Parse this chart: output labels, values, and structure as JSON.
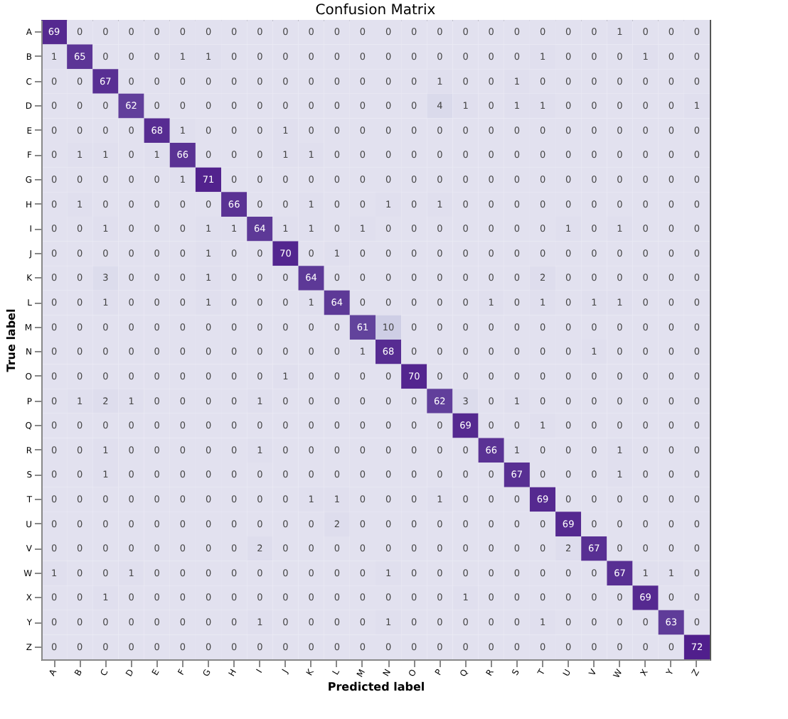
{
  "chart_data": {
    "type": "heatmap",
    "title": "Confusion Matrix",
    "xlabel": "Predicted label",
    "ylabel": "True label",
    "grid": false,
    "data_labels": true,
    "categories": [
      "A",
      "B",
      "C",
      "D",
      "E",
      "F",
      "G",
      "H",
      "I",
      "J",
      "K",
      "L",
      "M",
      "N",
      "O",
      "P",
      "Q",
      "R",
      "S",
      "T",
      "U",
      "V",
      "W",
      "X",
      "Y",
      "Z"
    ],
    "y_categories": [
      "A",
      "B",
      "C",
      "D",
      "E",
      "F",
      "G",
      "H",
      "I",
      "J",
      "K",
      "L",
      "M",
      "N",
      "O",
      "P",
      "Q",
      "R",
      "S",
      "T",
      "U",
      "V",
      "W",
      "X",
      "Y",
      "Z"
    ],
    "cells": [
      [
        69,
        0,
        0,
        0,
        0,
        0,
        0,
        0,
        0,
        0,
        0,
        0,
        0,
        0,
        0,
        0,
        0,
        0,
        0,
        0,
        0,
        0,
        1,
        0,
        0,
        0
      ],
      [
        1,
        65,
        0,
        0,
        0,
        1,
        1,
        0,
        0,
        0,
        0,
        0,
        0,
        0,
        0,
        0,
        0,
        0,
        0,
        1,
        0,
        0,
        0,
        1,
        0,
        0
      ],
      [
        0,
        0,
        67,
        0,
        0,
        0,
        0,
        0,
        0,
        0,
        0,
        0,
        0,
        0,
        0,
        1,
        0,
        0,
        1,
        0,
        0,
        0,
        0,
        0,
        0,
        0
      ],
      [
        0,
        0,
        0,
        62,
        0,
        0,
        0,
        0,
        0,
        0,
        0,
        0,
        0,
        0,
        0,
        4,
        1,
        0,
        1,
        1,
        0,
        0,
        0,
        0,
        0,
        1
      ],
      [
        0,
        0,
        0,
        0,
        68,
        1,
        0,
        0,
        0,
        1,
        0,
        0,
        0,
        0,
        0,
        0,
        0,
        0,
        0,
        0,
        0,
        0,
        0,
        0,
        0,
        0
      ],
      [
        0,
        1,
        1,
        0,
        1,
        66,
        0,
        0,
        0,
        1,
        1,
        0,
        0,
        0,
        0,
        0,
        0,
        0,
        0,
        0,
        0,
        0,
        0,
        0,
        0,
        0
      ],
      [
        0,
        0,
        0,
        0,
        0,
        1,
        71,
        0,
        0,
        0,
        0,
        0,
        0,
        0,
        0,
        0,
        0,
        0,
        0,
        0,
        0,
        0,
        0,
        0,
        0,
        0
      ],
      [
        0,
        1,
        0,
        0,
        0,
        0,
        0,
        66,
        0,
        0,
        1,
        0,
        0,
        1,
        0,
        1,
        0,
        0,
        0,
        0,
        0,
        0,
        0,
        0,
        0,
        0
      ],
      [
        0,
        0,
        1,
        0,
        0,
        0,
        1,
        1,
        64,
        1,
        1,
        0,
        1,
        0,
        0,
        0,
        0,
        0,
        0,
        0,
        1,
        0,
        1,
        0,
        0,
        0
      ],
      [
        0,
        0,
        0,
        0,
        0,
        0,
        1,
        0,
        0,
        70,
        0,
        1,
        0,
        0,
        0,
        0,
        0,
        0,
        0,
        0,
        0,
        0,
        0,
        0,
        0,
        0
      ],
      [
        0,
        0,
        3,
        0,
        0,
        0,
        1,
        0,
        0,
        0,
        64,
        0,
        0,
        0,
        0,
        0,
        0,
        0,
        0,
        2,
        0,
        0,
        0,
        0,
        0,
        0
      ],
      [
        0,
        0,
        1,
        0,
        0,
        0,
        1,
        0,
        0,
        0,
        1,
        64,
        0,
        0,
        0,
        0,
        0,
        1,
        0,
        1,
        0,
        1,
        1,
        0,
        0,
        0
      ],
      [
        0,
        0,
        0,
        0,
        0,
        0,
        0,
        0,
        0,
        0,
        0,
        0,
        61,
        10,
        0,
        0,
        0,
        0,
        0,
        0,
        0,
        0,
        0,
        0,
        0,
        0
      ],
      [
        0,
        0,
        0,
        0,
        0,
        0,
        0,
        0,
        0,
        0,
        0,
        0,
        1,
        68,
        0,
        0,
        0,
        0,
        0,
        0,
        0,
        1,
        0,
        0,
        0,
        0
      ],
      [
        0,
        0,
        0,
        0,
        0,
        0,
        0,
        0,
        0,
        1,
        0,
        0,
        0,
        0,
        70,
        0,
        0,
        0,
        0,
        0,
        0,
        0,
        0,
        0,
        0,
        0
      ],
      [
        0,
        1,
        2,
        1,
        0,
        0,
        0,
        0,
        1,
        0,
        0,
        0,
        0,
        0,
        0,
        62,
        3,
        0,
        1,
        0,
        0,
        0,
        0,
        0,
        0,
        0
      ],
      [
        0,
        0,
        0,
        0,
        0,
        0,
        0,
        0,
        0,
        0,
        0,
        0,
        0,
        0,
        0,
        0,
        69,
        0,
        0,
        1,
        0,
        0,
        0,
        0,
        0,
        0
      ],
      [
        0,
        0,
        1,
        0,
        0,
        0,
        0,
        0,
        1,
        0,
        0,
        0,
        0,
        0,
        0,
        0,
        0,
        66,
        1,
        0,
        0,
        0,
        1,
        0,
        0,
        0
      ],
      [
        0,
        0,
        1,
        0,
        0,
        0,
        0,
        0,
        0,
        0,
        0,
        0,
        0,
        0,
        0,
        0,
        0,
        0,
        67,
        0,
        0,
        0,
        1,
        0,
        0,
        0
      ],
      [
        0,
        0,
        0,
        0,
        0,
        0,
        0,
        0,
        0,
        0,
        1,
        1,
        0,
        0,
        0,
        1,
        0,
        0,
        0,
        69,
        0,
        0,
        0,
        0,
        0,
        0
      ],
      [
        0,
        0,
        0,
        0,
        0,
        0,
        0,
        0,
        0,
        0,
        0,
        2,
        0,
        0,
        0,
        0,
        0,
        0,
        0,
        0,
        69,
        0,
        0,
        0,
        0,
        0
      ],
      [
        0,
        0,
        0,
        0,
        0,
        0,
        0,
        0,
        2,
        0,
        0,
        0,
        0,
        0,
        0,
        0,
        0,
        0,
        0,
        0,
        2,
        67,
        0,
        0,
        0,
        0
      ],
      [
        1,
        0,
        0,
        1,
        0,
        0,
        0,
        0,
        0,
        0,
        0,
        0,
        0,
        1,
        0,
        0,
        0,
        0,
        0,
        0,
        0,
        0,
        67,
        1,
        1,
        0
      ],
      [
        0,
        0,
        1,
        0,
        0,
        0,
        0,
        0,
        0,
        0,
        0,
        0,
        0,
        0,
        0,
        0,
        1,
        0,
        0,
        0,
        0,
        0,
        0,
        69,
        0,
        0
      ],
      [
        0,
        0,
        0,
        0,
        0,
        0,
        0,
        0,
        1,
        0,
        0,
        0,
        0,
        1,
        0,
        0,
        0,
        0,
        0,
        1,
        0,
        0,
        0,
        0,
        63,
        0
      ],
      [
        0,
        0,
        0,
        0,
        0,
        0,
        0,
        0,
        0,
        0,
        0,
        0,
        0,
        0,
        0,
        0,
        0,
        0,
        0,
        0,
        0,
        0,
        0,
        0,
        0,
        72
      ]
    ]
  }
}
